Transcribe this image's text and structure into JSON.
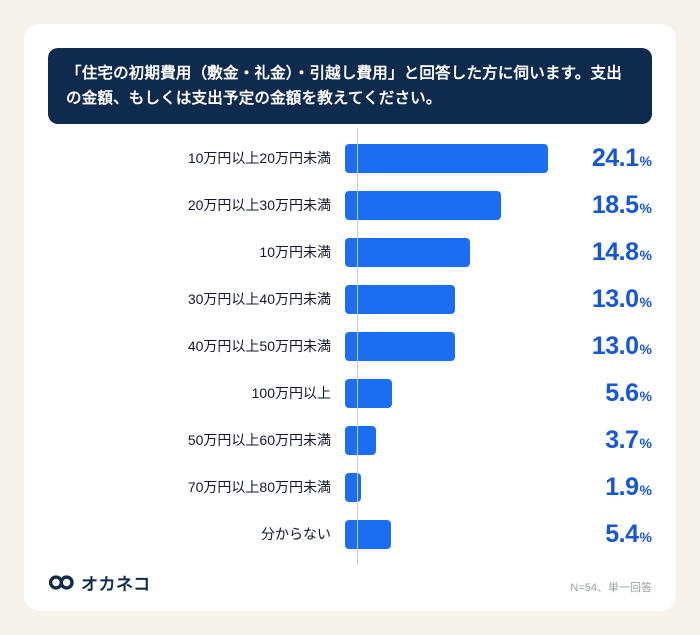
{
  "header": {
    "title": "「住宅の初期費用（敷金・礼金）・引越し費用」と回答した方に伺います。支出の金額、もしくは支出予定の金額を教えてください。"
  },
  "chart_data": {
    "type": "bar",
    "orientation": "horizontal",
    "title": "",
    "categories": [
      "10万円以上20万円未満",
      "20万円以上30万円未満",
      "10万円未満",
      "30万円以上40万円未満",
      "40万円以上50万円未満",
      "100万円以上",
      "50万円以上60万円未満",
      "70万円以上80万円未満",
      "分からない"
    ],
    "values": [
      24.1,
      18.5,
      14.8,
      13.0,
      13.0,
      5.6,
      3.7,
      1.9,
      5.4
    ],
    "value_labels": [
      "24.1",
      "18.5",
      "14.8",
      "13.0",
      "13.0",
      "5.6",
      "3.7",
      "1.9",
      "5.4"
    ],
    "unit": "%",
    "xlim": [
      0,
      25.5
    ],
    "grid": false,
    "legend_position": "none",
    "bar_color": "#1b6ef2",
    "value_color": "#1657d4"
  },
  "footer": {
    "logo_text": "オカネコ",
    "note": "N=54、単一回答"
  },
  "colors": {
    "background": "#f6f3ec",
    "card": "#ffffff",
    "header_bg": "#0e2b4e",
    "bar": "#1b6ef2",
    "value_text": "#1657d4",
    "axis_line": "#c6cbd3",
    "note_text": "#9aa0a8"
  }
}
